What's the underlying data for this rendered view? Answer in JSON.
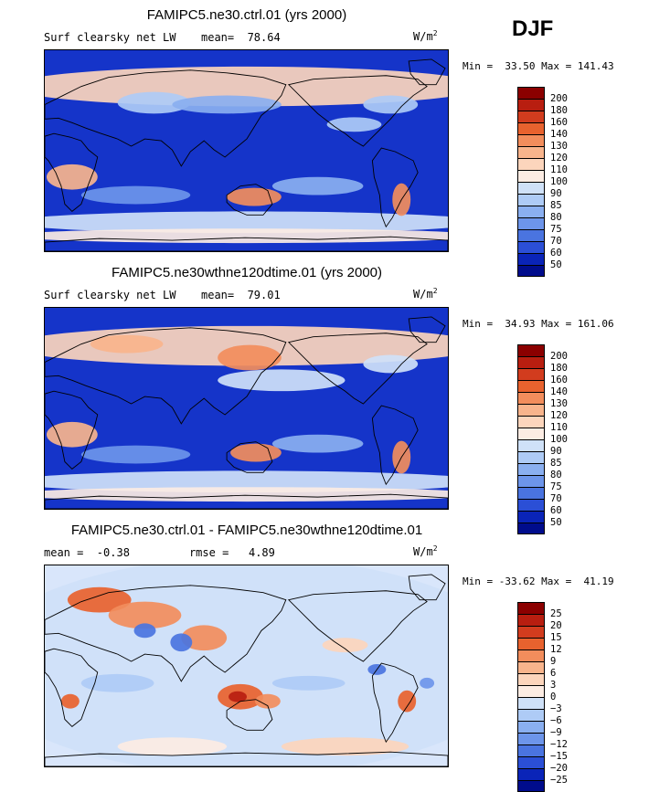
{
  "season": "DJF",
  "panels": [
    {
      "title": "FAMIPC5.ne30.ctrl.01 (yrs 2000)",
      "variable": "Surf clearsky net LW",
      "stat_text": "mean=  78.64",
      "units_base": "W/m",
      "units_exp": "2",
      "minmax": "Min =  33.50 Max = 141.43",
      "levels": [
        "200",
        "180",
        "160",
        "140",
        "130",
        "120",
        "110",
        "100",
        "90",
        "85",
        "80",
        "75",
        "70",
        "60",
        "50"
      ],
      "colors": [
        "#8b0000",
        "#b81e10",
        "#d23c1e",
        "#e8622e",
        "#f28d5c",
        "#f8b48c",
        "#fcd5bc",
        "#fcece3",
        "#cfe1f8",
        "#aecbf6",
        "#8aaff0",
        "#6d95ea",
        "#4a74e0",
        "#2b4fd6",
        "#0a24b8",
        "#000c8c"
      ],
      "base": "#1534c9",
      "blobs": "warm"
    },
    {
      "title": "FAMIPC5.ne30wthne120dtime.01 (yrs 2000)",
      "variable": "Surf clearsky net LW",
      "stat_text": "mean=  79.01",
      "units_base": "W/m",
      "units_exp": "2",
      "minmax": "Min =  34.93 Max = 161.06",
      "levels": [
        "200",
        "180",
        "160",
        "140",
        "130",
        "120",
        "110",
        "100",
        "90",
        "85",
        "80",
        "75",
        "70",
        "60",
        "50"
      ],
      "colors": [
        "#8b0000",
        "#b81e10",
        "#d23c1e",
        "#e8622e",
        "#f28d5c",
        "#f8b48c",
        "#fcd5bc",
        "#fcece3",
        "#cfe1f8",
        "#aecbf6",
        "#8aaff0",
        "#6d95ea",
        "#4a74e0",
        "#2b4fd6",
        "#0a24b8",
        "#000c8c"
      ],
      "base": "#1534c9",
      "blobs": "warm2"
    },
    {
      "title": "FAMIPC5.ne30.ctrl.01 - FAMIPC5.ne30wthne120dtime.01",
      "variable": "",
      "stat_text": "mean =  -0.38         rmse =   4.89",
      "units_base": "W/m",
      "units_exp": "2",
      "minmax": "Min = -33.62 Max =  41.19",
      "levels": [
        "25",
        "20",
        "15",
        "12",
        "9",
        "6",
        "3",
        "0",
        "−3",
        "−6",
        "−9",
        "−12",
        "−15",
        "−20",
        "−25"
      ],
      "colors": [
        "#8b0000",
        "#b81e10",
        "#d23c1e",
        "#e8622e",
        "#f28d5c",
        "#f8b48c",
        "#fcd5bc",
        "#fcece3",
        "#cfe1f8",
        "#aecbf6",
        "#8aaff0",
        "#6d95ea",
        "#4a74e0",
        "#2b4fd6",
        "#0a24b8",
        "#000c8c"
      ],
      "base": "#d9e6fb",
      "blobs": "diff"
    }
  ]
}
